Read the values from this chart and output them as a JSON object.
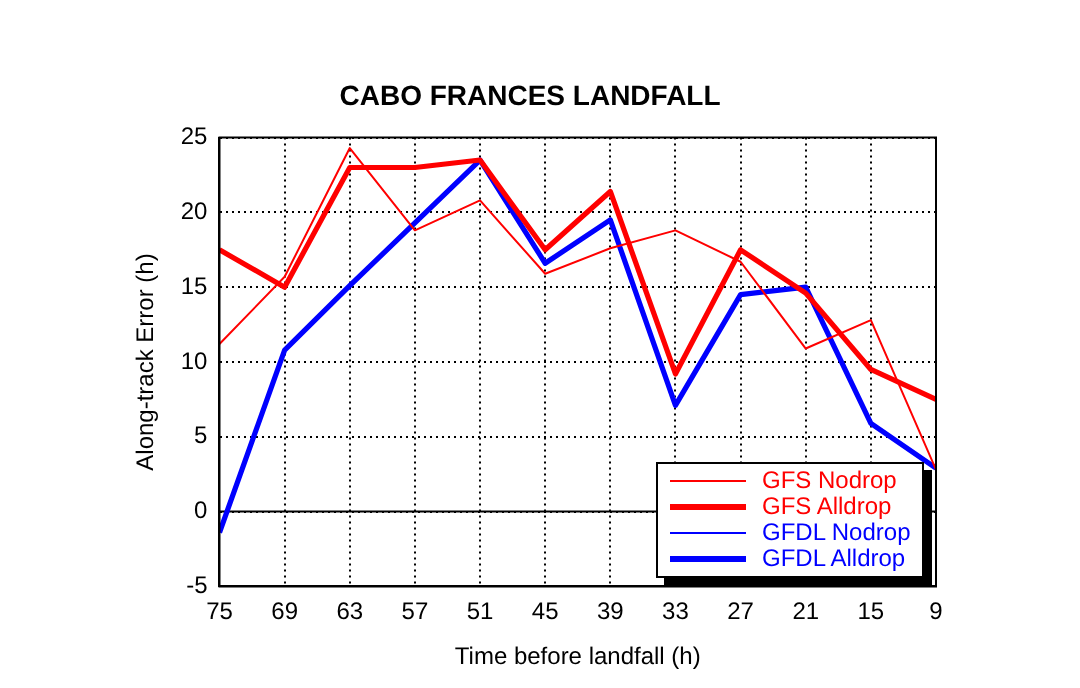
{
  "chart_data": {
    "type": "line",
    "title": "CABO FRANCES LANDFALL",
    "xlabel": "Time before landfall (h)",
    "ylabel": "Along-track Error (h)",
    "x": [
      75,
      69,
      63,
      57,
      51,
      45,
      39,
      33,
      27,
      21,
      15,
      9
    ],
    "series": [
      {
        "name": "GFS Nodrop",
        "color": "#ff0000",
        "values": [
          11.2,
          15.7,
          24.3,
          18.8,
          20.8,
          15.9,
          17.6,
          18.8,
          16.7,
          10.9,
          12.8,
          2.8
        ]
      },
      {
        "name": "GFS Alldrop",
        "color": "#ff0000",
        "values": [
          17.5,
          15.0,
          23.0,
          23.0,
          23.5,
          17.5,
          21.4,
          9.2,
          17.5,
          14.6,
          9.5,
          7.5
        ]
      },
      {
        "name": "GFDL Nodrop",
        "color": "#0000ff",
        "values": [
          null,
          null,
          null,
          null,
          null,
          null,
          null,
          null,
          null,
          null,
          null,
          null
        ]
      },
      {
        "name": "GFDL Alldrop",
        "color": "#0000ff",
        "values": [
          -1.4,
          10.8,
          15.1,
          19.3,
          23.5,
          16.6,
          19.5,
          7.1,
          14.5,
          15.0,
          5.9,
          2.9
        ]
      }
    ],
    "xlim": [
      75,
      9
    ],
    "xticks": [
      75,
      69,
      63,
      57,
      51,
      45,
      39,
      33,
      27,
      21,
      15,
      9
    ],
    "ylim": [
      -5,
      25
    ],
    "yticks": [
      -5,
      0,
      5,
      10,
      15,
      20,
      25
    ],
    "ref_lines": [
      {
        "axis": "y",
        "value": 0,
        "color": "#000000"
      }
    ],
    "grid": true,
    "legend": "bottom right",
    "marker": "none",
    "line_style": "solid"
  }
}
